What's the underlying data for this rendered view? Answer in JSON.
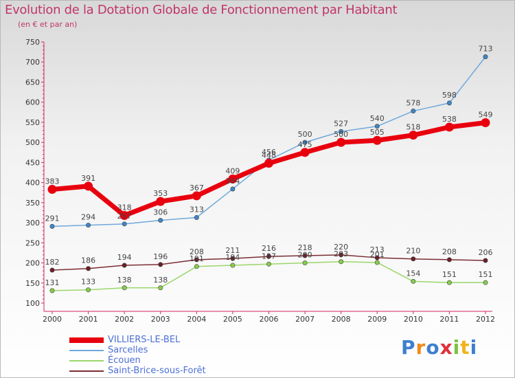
{
  "title": "Evolution de la Dotation Globale de Fonctionnement par Habitant",
  "subtitle": "(en € et par an)",
  "brand": {
    "text": "Proxiti",
    "letters": [
      {
        "ch": "P",
        "color": "#3d7fd1"
      },
      {
        "ch": "r",
        "color": "#f08a1c"
      },
      {
        "ch": "o",
        "color": "#3d7fd1"
      },
      {
        "ch": "x",
        "color": "#e0303a"
      },
      {
        "ch": "i",
        "color": "#7cc243"
      },
      {
        "ch": "t",
        "color": "#f0b41c"
      },
      {
        "ch": "i",
        "color": "#3d7fd1"
      }
    ]
  },
  "chart_data": {
    "type": "line",
    "title": "Evolution de la Dotation Globale de Fonctionnement par Habitant",
    "subtitle": "(en € et par an)",
    "x": [
      "2000",
      "2001",
      "2002",
      "2003",
      "2004",
      "2005",
      "2006",
      "2007",
      "2008",
      "2009",
      "2010",
      "2011",
      "2012"
    ],
    "ylim": [
      100,
      750
    ],
    "yticks": [
      100,
      150,
      200,
      250,
      300,
      350,
      400,
      450,
      500,
      550,
      600,
      650,
      700,
      750
    ],
    "grid": false,
    "legend": "bottom-left",
    "series": [
      {
        "name": "VILLIERS-LE-BEL",
        "color": "#e8000e",
        "marker": "#e8000e",
        "width": 7,
        "values": [
          383,
          391,
          318,
          353,
          367,
          409,
          448,
          475,
          500,
          505,
          518,
          538,
          549
        ]
      },
      {
        "name": "Sarcelles",
        "color": "#6fa8dc",
        "marker": "#3f86c6",
        "width": 1.5,
        "values": [
          291,
          294,
          297,
          306,
          313,
          384,
          456,
          500,
          527,
          540,
          578,
          598,
          713
        ]
      },
      {
        "name": "Écouen",
        "color": "#9bd66a",
        "marker": "#86cc4a",
        "width": 1.5,
        "values": [
          131,
          133,
          138,
          138,
          191,
          194,
          197,
          200,
          203,
          201,
          154,
          151,
          151
        ]
      },
      {
        "name": "Saint-Brice-sous-Forêt",
        "color": "#7a2d34",
        "marker": "#6e1e26",
        "width": 1.5,
        "values": [
          182,
          186,
          194,
          196,
          208,
          211,
          216,
          218,
          220,
          213,
          210,
          208,
          206
        ]
      }
    ]
  }
}
